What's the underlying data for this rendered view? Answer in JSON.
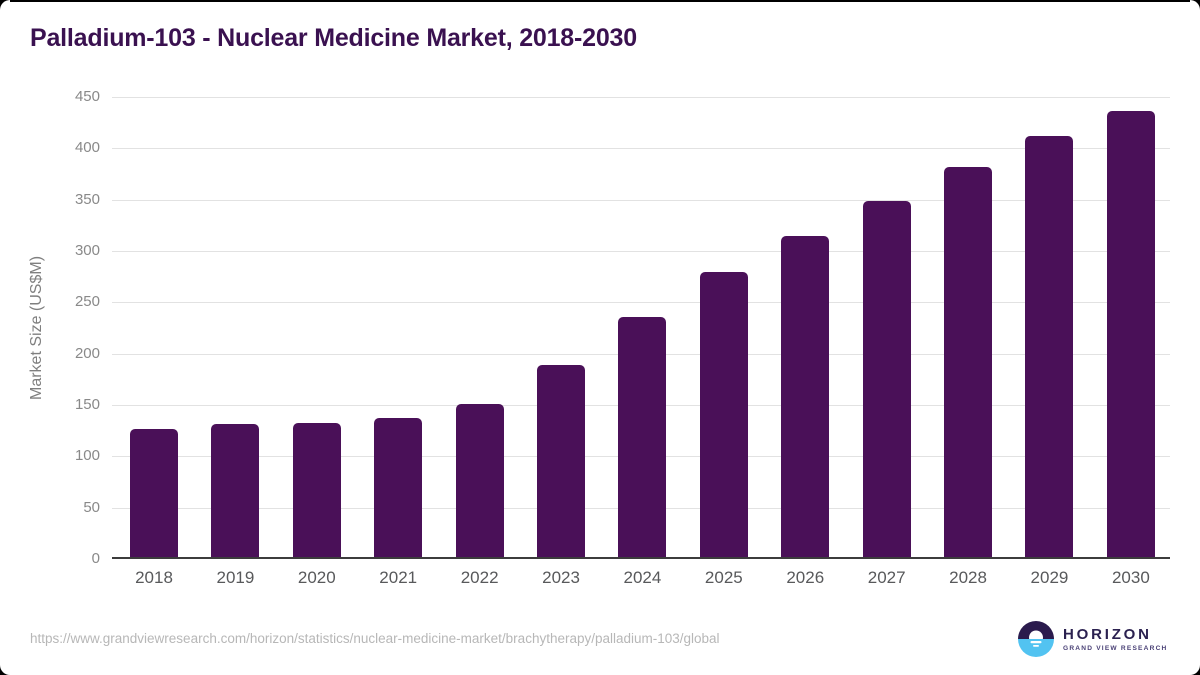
{
  "chart_data": {
    "type": "bar",
    "title": "Palladium-103 - Nuclear Medicine Market, 2018-2030",
    "categories": [
      "2018",
      "2019",
      "2020",
      "2021",
      "2022",
      "2023",
      "2024",
      "2025",
      "2026",
      "2027",
      "2028",
      "2029",
      "2030"
    ],
    "values": [
      127,
      132,
      133,
      137,
      151,
      189,
      236,
      280,
      315,
      349,
      382,
      412,
      436
    ],
    "xlabel": "",
    "ylabel": "Market Size (US$M)",
    "ylim": [
      0,
      450
    ],
    "ytick_step": 50,
    "grid": true,
    "legend_position": "none",
    "bar_color": "#4a1058"
  },
  "footer": {
    "source_url": "https://www.grandviewresearch.com/horizon/statistics/nuclear-medicine-market/brachytherapy/palladium-103/global",
    "logo": {
      "name": "HORIZON",
      "subtitle": "GRAND VIEW RESEARCH",
      "mark_icon": "horizon-sun-circle-icon"
    }
  },
  "colors": {
    "bar": "#4a1058",
    "title": "#3a1150",
    "y_axis_title": "#7f7f7f",
    "y_tick": "#898989",
    "x_tick": "#58595b",
    "gridline": "#e2e2e2",
    "baseline": "#3c3c3c",
    "source_url": "#b7b7b7",
    "logo_dark": "#2b2150",
    "logo_blue": "#52c3f1"
  }
}
